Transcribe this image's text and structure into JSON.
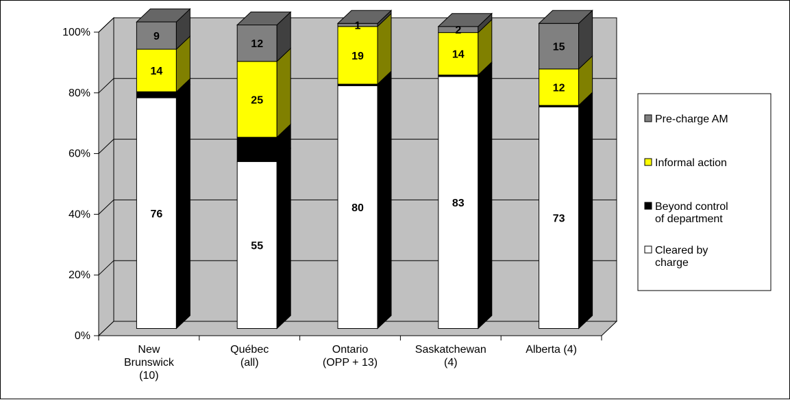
{
  "chart_data": {
    "type": "bar",
    "stacked": true,
    "percent_stacked": true,
    "three_d": true,
    "y_ticks": [
      "0%",
      "20%",
      "40%",
      "60%",
      "80%",
      "100%"
    ],
    "ylim": [
      0,
      100
    ],
    "grid": true,
    "legend_position": "right",
    "categories": [
      [
        "New",
        "Brunswick",
        "(10)"
      ],
      [
        "Québec",
        "(all)"
      ],
      [
        "Ontario",
        "(OPP + 13)"
      ],
      [
        "Saskatchewan",
        "(4)"
      ],
      [
        "Alberta (4)"
      ]
    ],
    "series": [
      {
        "name": "Cleared by charge",
        "values": [
          76,
          55,
          80,
          83,
          73
        ],
        "labels": [
          "76",
          "55",
          "80",
          "83",
          "73"
        ],
        "color": "#ffffff",
        "side": "#000000",
        "top": "#000000"
      },
      {
        "name": "Beyond control of department",
        "values": [
          2,
          8,
          0.5,
          0.5,
          0.5
        ],
        "labels": [
          "",
          "",
          "",
          "",
          ""
        ],
        "color": "#000000",
        "side": "#000000",
        "top": "#000000"
      },
      {
        "name": "Informal action",
        "values": [
          14,
          25,
          19,
          14,
          12
        ],
        "labels": [
          "14",
          "25",
          "19",
          "14",
          "12"
        ],
        "color": "#ffff00",
        "side": "#808000",
        "top": "#cccc00"
      },
      {
        "name": "Pre-charge AM",
        "values": [
          9,
          12,
          1,
          2,
          15
        ],
        "labels": [
          "9",
          "12",
          "1",
          "2",
          "15"
        ],
        "color": "#808080",
        "side": "#404040",
        "top": "#666666"
      }
    ],
    "legend": [
      {
        "label_lines": [
          "Pre-charge AM"
        ],
        "color": "#808080"
      },
      {
        "label_lines": [
          "Informal action"
        ],
        "color": "#ffff00"
      },
      {
        "label_lines": [
          "Beyond control",
          "of department"
        ],
        "color": "#000000"
      },
      {
        "label_lines": [
          "Cleared by",
          "charge"
        ],
        "color": "#ffffff"
      }
    ],
    "colors": {
      "wall": "#c0c0c0",
      "floor": "#c0c0c0",
      "outline": "#000000"
    }
  }
}
